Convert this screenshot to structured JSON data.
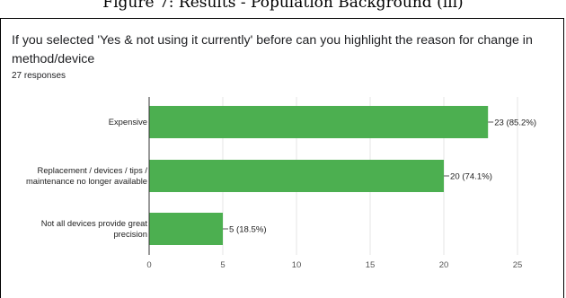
{
  "figure_caption": "Figure 7: Results - Population Background (iii)",
  "question": {
    "title": "If you selected 'Yes & not using it currently' before can you highlight the reason for change in method/device",
    "responses": "27 responses"
  },
  "colors": {
    "bar": "#4caf50",
    "grid": "#e5e5e5",
    "axis": "#333333",
    "label": "#222222"
  },
  "chart_data": {
    "type": "bar",
    "orientation": "horizontal",
    "categories": [
      "Expensive",
      "Replacement / devices / tips / maintenance no longer available",
      "Not all devices provide great precision"
    ],
    "category_lines": [
      [
        "Expensive"
      ],
      [
        "Replacement / devices / tips /",
        "maintenance no longer available"
      ],
      [
        "Not all devices provide great",
        "precision"
      ]
    ],
    "values": [
      23,
      20,
      5
    ],
    "data_labels": [
      "23 (85.2%)",
      "20 (74.1%)",
      "5 (18.5%)"
    ],
    "xlim": [
      0,
      25
    ],
    "xticks": [
      "0",
      "5",
      "10",
      "15",
      "20",
      "25"
    ],
    "grid": true,
    "legend": "none"
  }
}
